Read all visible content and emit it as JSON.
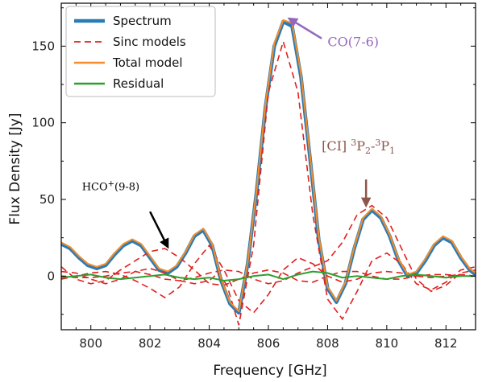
{
  "chart_data": {
    "type": "line",
    "title": "",
    "xlabel": "Frequency [GHz]",
    "ylabel": "Flux Density [Jy]",
    "xlim": [
      799,
      813
    ],
    "ylim": [
      -35,
      178
    ],
    "x_ticks": [
      800,
      802,
      804,
      806,
      808,
      810,
      812
    ],
    "y_ticks": [
      0,
      50,
      100,
      150
    ],
    "grid": false,
    "legend_position": "top-left",
    "series": [
      {
        "name": "Spectrum",
        "color": "#2c7bb6",
        "points": [
          [
            799.0,
            21
          ],
          [
            799.3,
            18
          ],
          [
            799.6,
            12
          ],
          [
            799.9,
            7
          ],
          [
            800.2,
            5
          ],
          [
            800.5,
            7
          ],
          [
            800.8,
            14
          ],
          [
            801.1,
            20
          ],
          [
            801.4,
            23
          ],
          [
            801.7,
            20
          ],
          [
            802.0,
            12
          ],
          [
            802.3,
            4
          ],
          [
            802.6,
            2
          ],
          [
            802.9,
            6
          ],
          [
            803.2,
            15
          ],
          [
            803.5,
            26
          ],
          [
            803.8,
            30
          ],
          [
            804.1,
            20
          ],
          [
            804.4,
            -3
          ],
          [
            804.7,
            -18
          ],
          [
            805.0,
            -24
          ],
          [
            805.3,
            8
          ],
          [
            805.6,
            55
          ],
          [
            805.9,
            110
          ],
          [
            806.2,
            150
          ],
          [
            806.5,
            166
          ],
          [
            806.8,
            163
          ],
          [
            807.1,
            130
          ],
          [
            807.4,
            78
          ],
          [
            807.7,
            24
          ],
          [
            808.0,
            -8
          ],
          [
            808.3,
            -17
          ],
          [
            808.6,
            -5
          ],
          [
            808.9,
            18
          ],
          [
            809.2,
            37
          ],
          [
            809.5,
            43
          ],
          [
            809.8,
            38
          ],
          [
            810.1,
            26
          ],
          [
            810.4,
            10
          ],
          [
            810.7,
            0
          ],
          [
            811.0,
            2
          ],
          [
            811.3,
            10
          ],
          [
            811.6,
            20
          ],
          [
            811.9,
            25
          ],
          [
            812.2,
            22
          ],
          [
            812.5,
            12
          ],
          [
            812.8,
            4
          ],
          [
            813.0,
            1
          ]
        ]
      },
      {
        "name": "Sinc models",
        "color": "#e02020",
        "curves": [
          [
            [
              799.0,
              3
            ],
            [
              799.5,
              2
            ],
            [
              800.0,
              -2
            ],
            [
              800.5,
              -5
            ],
            [
              801.0,
              -2
            ],
            [
              801.5,
              3
            ],
            [
              802.0,
              5
            ],
            [
              802.5,
              2
            ],
            [
              803.0,
              -3
            ],
            [
              803.5,
              -5
            ],
            [
              804.0,
              -3
            ],
            [
              804.3,
              2
            ],
            [
              804.6,
              -6
            ],
            [
              805.0,
              -32
            ],
            [
              805.5,
              20
            ],
            [
              806.0,
              120
            ],
            [
              806.5,
              153
            ],
            [
              807.0,
              120
            ],
            [
              807.5,
              40
            ],
            [
              808.0,
              -15
            ],
            [
              808.5,
              -28
            ],
            [
              809.0,
              -10
            ],
            [
              809.5,
              10
            ],
            [
              810.0,
              15
            ],
            [
              810.5,
              8
            ],
            [
              811.0,
              -5
            ],
            [
              811.5,
              -9
            ],
            [
              812.0,
              -4
            ],
            [
              812.5,
              4
            ],
            [
              813.0,
              6
            ]
          ],
          [
            [
              799.0,
              6
            ],
            [
              799.5,
              -2
            ],
            [
              800.0,
              -5
            ],
            [
              800.5,
              -3
            ],
            [
              801.0,
              4
            ],
            [
              801.5,
              10
            ],
            [
              802.0,
              16
            ],
            [
              802.5,
              18
            ],
            [
              803.0,
              12
            ],
            [
              803.5,
              4
            ],
            [
              804.0,
              -5
            ],
            [
              804.5,
              -6
            ],
            [
              805.0,
              -2
            ],
            [
              805.5,
              2
            ],
            [
              806.0,
              4
            ],
            [
              806.5,
              2
            ],
            [
              807.0,
              -3
            ],
            [
              807.5,
              -4
            ],
            [
              808.0,
              0
            ],
            [
              808.5,
              3
            ],
            [
              809.0,
              3
            ],
            [
              809.5,
              0
            ],
            [
              810.0,
              -2
            ],
            [
              810.5,
              -2
            ],
            [
              811.0,
              0
            ],
            [
              811.5,
              1
            ],
            [
              812.0,
              1
            ],
            [
              812.5,
              0
            ],
            [
              813.0,
              0
            ]
          ],
          [
            [
              799.0,
              -2
            ],
            [
              799.5,
              0
            ],
            [
              800.0,
              2
            ],
            [
              800.5,
              3
            ],
            [
              801.0,
              1
            ],
            [
              801.5,
              -3
            ],
            [
              802.0,
              -8
            ],
            [
              802.5,
              -14
            ],
            [
              803.0,
              -7
            ],
            [
              803.5,
              8
            ],
            [
              804.0,
              20
            ],
            [
              804.5,
              4
            ],
            [
              805.0,
              -16
            ],
            [
              805.5,
              -24
            ],
            [
              806.0,
              -12
            ],
            [
              806.5,
              4
            ],
            [
              807.0,
              12
            ],
            [
              807.5,
              8
            ],
            [
              808.0,
              0
            ],
            [
              808.5,
              -4
            ],
            [
              809.0,
              -2
            ],
            [
              809.5,
              2
            ],
            [
              810.0,
              3
            ],
            [
              810.5,
              2
            ],
            [
              811.0,
              0
            ],
            [
              811.5,
              -1
            ],
            [
              812.0,
              0
            ],
            [
              812.5,
              1
            ],
            [
              813.0,
              0
            ]
          ],
          [
            [
              799.0,
              0
            ],
            [
              799.5,
              -1
            ],
            [
              800.0,
              -1
            ],
            [
              800.5,
              0
            ],
            [
              801.0,
              2
            ],
            [
              801.5,
              3
            ],
            [
              802.0,
              1
            ],
            [
              802.5,
              -2
            ],
            [
              803.0,
              -3
            ],
            [
              803.5,
              -1
            ],
            [
              804.0,
              2
            ],
            [
              804.5,
              4
            ],
            [
              805.0,
              3
            ],
            [
              805.5,
              -2
            ],
            [
              806.0,
              -5
            ],
            [
              806.5,
              -3
            ],
            [
              807.0,
              2
            ],
            [
              807.5,
              6
            ],
            [
              808.0,
              10
            ],
            [
              808.5,
              22
            ],
            [
              809.0,
              40
            ],
            [
              809.5,
              46
            ],
            [
              810.0,
              38
            ],
            [
              810.5,
              18
            ],
            [
              811.0,
              -2
            ],
            [
              811.5,
              -10
            ],
            [
              812.0,
              -6
            ],
            [
              812.5,
              2
            ],
            [
              813.0,
              4
            ]
          ]
        ]
      },
      {
        "name": "Total model",
        "color": "#f28e2b",
        "points": [
          [
            799.0,
            22
          ],
          [
            799.3,
            19
          ],
          [
            799.6,
            13
          ],
          [
            799.9,
            8
          ],
          [
            800.2,
            6
          ],
          [
            800.5,
            8
          ],
          [
            800.8,
            15
          ],
          [
            801.1,
            21
          ],
          [
            801.4,
            24
          ],
          [
            801.7,
            21
          ],
          [
            802.0,
            13
          ],
          [
            802.3,
            5
          ],
          [
            802.6,
            3
          ],
          [
            802.9,
            7
          ],
          [
            803.2,
            16
          ],
          [
            803.5,
            27
          ],
          [
            803.8,
            31
          ],
          [
            804.1,
            21
          ],
          [
            804.4,
            -2
          ],
          [
            804.7,
            -17
          ],
          [
            805.0,
            -23
          ],
          [
            805.3,
            9
          ],
          [
            805.6,
            56
          ],
          [
            805.9,
            112
          ],
          [
            806.2,
            152
          ],
          [
            806.5,
            167
          ],
          [
            806.8,
            165
          ],
          [
            807.1,
            132
          ],
          [
            807.4,
            80
          ],
          [
            807.7,
            26
          ],
          [
            808.0,
            -7
          ],
          [
            808.3,
            -16
          ],
          [
            808.6,
            -4
          ],
          [
            808.9,
            19
          ],
          [
            809.2,
            38
          ],
          [
            809.5,
            44
          ],
          [
            809.8,
            39
          ],
          [
            810.1,
            27
          ],
          [
            810.4,
            11
          ],
          [
            810.7,
            1
          ],
          [
            811.0,
            3
          ],
          [
            811.3,
            11
          ],
          [
            811.6,
            21
          ],
          [
            811.9,
            26
          ],
          [
            812.2,
            23
          ],
          [
            812.5,
            13
          ],
          [
            812.8,
            5
          ],
          [
            813.0,
            2
          ]
        ]
      },
      {
        "name": "Residual",
        "color": "#2ca02c",
        "points": [
          [
            799.0,
            -1
          ],
          [
            799.5,
            0
          ],
          [
            800.0,
            1
          ],
          [
            800.5,
            -1
          ],
          [
            801.0,
            -2
          ],
          [
            801.5,
            -1
          ],
          [
            802.0,
            0
          ],
          [
            802.5,
            1
          ],
          [
            803.0,
            -1
          ],
          [
            803.5,
            -2
          ],
          [
            804.0,
            -1
          ],
          [
            804.5,
            -3
          ],
          [
            805.0,
            -2
          ],
          [
            805.5,
            0
          ],
          [
            806.0,
            1
          ],
          [
            806.5,
            -2
          ],
          [
            807.0,
            1
          ],
          [
            807.5,
            3
          ],
          [
            808.0,
            2
          ],
          [
            808.5,
            -1
          ],
          [
            809.0,
            0
          ],
          [
            809.5,
            -1
          ],
          [
            810.0,
            -2
          ],
          [
            810.5,
            0
          ],
          [
            811.0,
            1
          ],
          [
            811.5,
            0
          ],
          [
            812.0,
            -1
          ],
          [
            812.5,
            0
          ],
          [
            813.0,
            0
          ]
        ]
      }
    ],
    "annotations": [
      {
        "id": "co",
        "text": "CO(7-6)",
        "color": "#9467bd",
        "text_x": 808.0,
        "text_y": 150,
        "arrow_from": [
          807.8,
          155
        ],
        "arrow_to": [
          806.7,
          168
        ]
      },
      {
        "id": "ci",
        "text_main": "[CI] ",
        "text_sup1": "3",
        "text_p2": "P",
        "text_sub2": "2",
        "text_dash": "-",
        "text_sup3": "3",
        "text_p1": "P",
        "text_sub1": "1",
        "color": "#8c564b",
        "text_x": 807.8,
        "text_y": 82,
        "arrow_from": [
          809.3,
          63
        ],
        "arrow_to": [
          809.3,
          46
        ]
      },
      {
        "id": "hco",
        "text_main": "HCO",
        "text_sup": "+",
        "text_rest": "(9-8)",
        "color": "#000000",
        "text_x": 799.7,
        "text_y": 56,
        "arrow_from": [
          802.0,
          42
        ],
        "arrow_to": [
          802.6,
          19
        ]
      }
    ]
  }
}
